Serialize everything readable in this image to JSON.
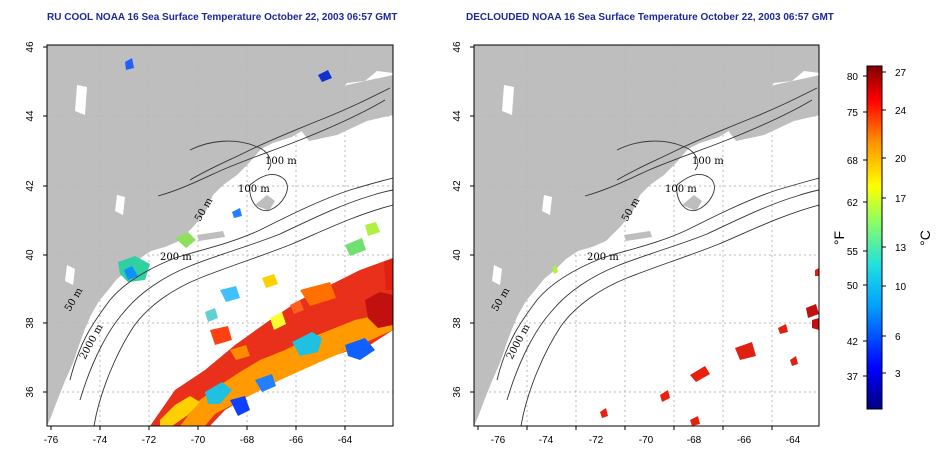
{
  "panels": [
    {
      "title": "RU COOL NOAA 16 Sea Surface Temperature October 22, 2003 06:57 GMT",
      "x_ticks": [
        "-76",
        "-74",
        "-72",
        "-70",
        "-68",
        "-66",
        "-64"
      ],
      "y_ticks": [
        "36",
        "38",
        "40",
        "42",
        "44",
        "46"
      ],
      "contour_labels": [
        "100 m",
        "100 m",
        "50 m",
        "200 m",
        "50 m",
        "2000 m"
      ]
    },
    {
      "title": "DECLOUDED NOAA 16 Sea Surface Temperature October 22, 2003 06:57 GMT",
      "x_ticks": [
        "-76",
        "-74",
        "-72",
        "-70",
        "-68",
        "-66",
        "-64"
      ],
      "y_ticks": [
        "36",
        "38",
        "40",
        "42",
        "44",
        "46"
      ],
      "contour_labels": [
        "100 m",
        "100 m",
        "50 m",
        "200 m",
        "50 m",
        "2000 m"
      ]
    }
  ],
  "colorbar": {
    "fahrenheit_unit": "°F",
    "celsius_unit": "°C",
    "fahrenheit_ticks": [
      "80",
      "75",
      "68",
      "62",
      "55",
      "50",
      "42",
      "37"
    ],
    "celsius_ticks": [
      "27",
      "24",
      "20",
      "17",
      "13",
      "10",
      "6",
      "3"
    ]
  },
  "colors": {
    "land": "#bebebe",
    "title": "#1a2a9c",
    "grid": "#b8b8b8"
  }
}
